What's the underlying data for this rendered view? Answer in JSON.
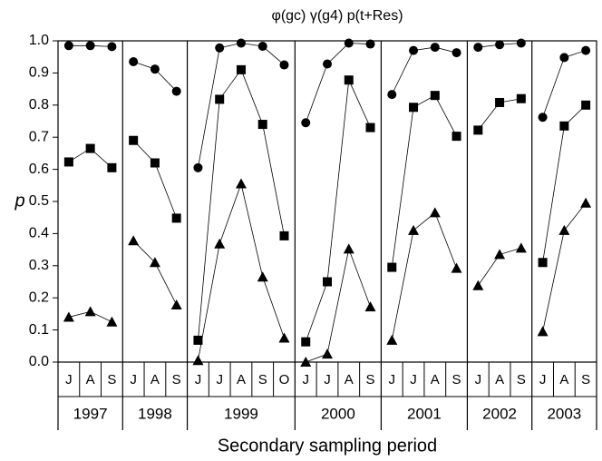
{
  "chart_data": {
    "type": "line",
    "title": "φ(gc)   γ(g4)   p(t+Res)",
    "y_label": "p",
    "x_label": "Secondary sampling period",
    "groups": [
      {
        "name": "1997",
        "categories": [
          "J",
          "A",
          "S"
        ]
      },
      {
        "name": "1998",
        "categories": [
          "J",
          "A",
          "S"
        ]
      },
      {
        "name": "1999",
        "categories": [
          "J",
          "J",
          "A",
          "S",
          "O"
        ]
      },
      {
        "name": "2000",
        "categories": [
          "J",
          "J",
          "A",
          "S"
        ]
      },
      {
        "name": "2001",
        "categories": [
          "J",
          "J",
          "A",
          "S"
        ]
      },
      {
        "name": "2002",
        "categories": [
          "J",
          "A",
          "S"
        ]
      },
      {
        "name": "2003",
        "categories": [
          "J",
          "A",
          "S"
        ]
      }
    ],
    "series": [
      {
        "marker": "circle",
        "color": "#000000",
        "values": [
          0.985,
          0.985,
          0.982,
          0.935,
          0.912,
          0.843,
          0.605,
          0.978,
          0.993,
          0.983,
          0.925,
          0.745,
          0.928,
          0.993,
          0.99,
          0.833,
          0.97,
          0.98,
          0.963,
          0.98,
          0.988,
          0.993,
          0.762,
          0.948,
          0.97
        ]
      },
      {
        "marker": "square",
        "color": "#000000",
        "values": [
          0.623,
          0.665,
          0.605,
          0.69,
          0.62,
          0.448,
          0.068,
          0.818,
          0.91,
          0.74,
          0.393,
          0.063,
          0.25,
          0.878,
          0.73,
          0.295,
          0.793,
          0.83,
          0.703,
          0.722,
          0.808,
          0.82,
          0.31,
          0.735,
          0.8
        ]
      },
      {
        "marker": "triangle",
        "color": "#000000",
        "values": [
          0.14,
          0.157,
          0.125,
          0.378,
          0.31,
          0.178,
          0.005,
          0.368,
          0.555,
          0.265,
          0.075,
          0.0,
          0.025,
          0.352,
          0.172,
          0.068,
          0.41,
          0.465,
          0.292,
          0.238,
          0.335,
          0.355,
          0.095,
          0.41,
          0.495
        ]
      }
    ],
    "ylim": [
      0,
      1
    ],
    "yticks": [
      {
        "value": 0,
        "label": "0.0"
      },
      0.1,
      0.2,
      0.3,
      0.4,
      0.5,
      0.6,
      0.7,
      0.8,
      0.9,
      {
        "value": 1,
        "label": "1.0"
      }
    ]
  }
}
